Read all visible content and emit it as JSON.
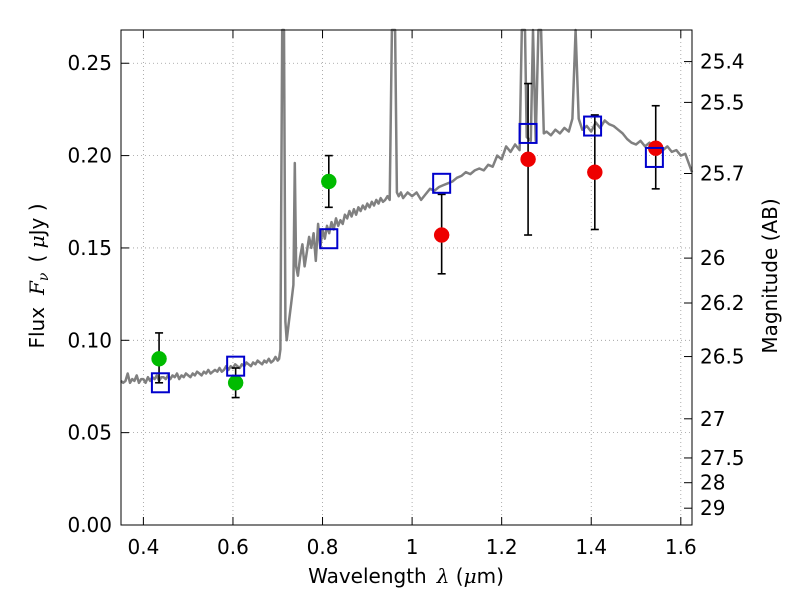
{
  "chart_data": {
    "type": "scatter",
    "xlabel": {
      "main": "Wavelength",
      "symbol": "λ",
      "unit_open": " (",
      "unit_mu": "μ",
      "unit_rest": "m)"
    },
    "ylabel": {
      "main": "Flux",
      "symbol": "F",
      "subscript": "ν",
      "unit_open": "( ",
      "unit_mu": "μ",
      "unit_rest": "Jy )"
    },
    "ylabel_right": "Magnitude (AB)",
    "xlim": [
      0.35,
      1.625
    ],
    "ylim": [
      0.0,
      0.268
    ],
    "x_ticks": [
      0.4,
      0.6,
      0.8,
      1.0,
      1.2,
      1.4,
      1.6
    ],
    "x_tick_labels": [
      "0.4",
      "0.6",
      "0.8",
      "1",
      "1.2",
      "1.4",
      "1.6"
    ],
    "y_ticks": [
      0.0,
      0.05,
      0.1,
      0.15,
      0.2,
      0.25
    ],
    "y_tick_labels": [
      "0.00",
      "0.05",
      "0.10",
      "0.15",
      "0.20",
      "0.25"
    ],
    "magnitude_ticks": [
      {
        "label": "25.4",
        "flux": 0.2509
      },
      {
        "label": "25.5",
        "flux": 0.2288
      },
      {
        "label": "25.7",
        "flux": 0.1903
      },
      {
        "label": "26",
        "flux": 0.1445
      },
      {
        "label": "26.2",
        "flux": 0.1202
      },
      {
        "label": "26.5",
        "flux": 0.0912
      },
      {
        "label": "27",
        "flux": 0.0575
      },
      {
        "label": "27.5",
        "flux": 0.0363
      },
      {
        "label": "28",
        "flux": 0.0229
      },
      {
        "label": "29",
        "flux": 0.0091
      }
    ],
    "grid": true,
    "colors": {
      "model": "#808080",
      "green_points": "#00bb00",
      "red_points": "#ee0000",
      "model_boxes": "#0000cc",
      "errorbar": "#000000",
      "grid": "#999999"
    },
    "series": [
      {
        "kind": "line",
        "points": [
          [
            0.35,
            0.078
          ],
          [
            0.355,
            0.077
          ],
          [
            0.36,
            0.078
          ],
          [
            0.365,
            0.082
          ],
          [
            0.37,
            0.077
          ],
          [
            0.375,
            0.079
          ],
          [
            0.38,
            0.078
          ],
          [
            0.385,
            0.081
          ],
          [
            0.39,
            0.077
          ],
          [
            0.395,
            0.079
          ],
          [
            0.4,
            0.079
          ],
          [
            0.405,
            0.077
          ],
          [
            0.41,
            0.08
          ],
          [
            0.415,
            0.078
          ],
          [
            0.42,
            0.08
          ],
          [
            0.425,
            0.079
          ],
          [
            0.43,
            0.081
          ],
          [
            0.435,
            0.078
          ],
          [
            0.44,
            0.08
          ],
          [
            0.445,
            0.08
          ],
          [
            0.45,
            0.079
          ],
          [
            0.455,
            0.081
          ],
          [
            0.46,
            0.079
          ],
          [
            0.465,
            0.081
          ],
          [
            0.47,
            0.08
          ],
          [
            0.475,
            0.082
          ],
          [
            0.48,
            0.079
          ],
          [
            0.485,
            0.081
          ],
          [
            0.49,
            0.08
          ],
          [
            0.495,
            0.082
          ],
          [
            0.5,
            0.081
          ],
          [
            0.505,
            0.08
          ],
          [
            0.51,
            0.082
          ],
          [
            0.515,
            0.081
          ],
          [
            0.52,
            0.083
          ],
          [
            0.525,
            0.082
          ],
          [
            0.53,
            0.081
          ],
          [
            0.535,
            0.083
          ],
          [
            0.54,
            0.082
          ],
          [
            0.545,
            0.084
          ],
          [
            0.55,
            0.082
          ],
          [
            0.555,
            0.083
          ],
          [
            0.56,
            0.084
          ],
          [
            0.565,
            0.083
          ],
          [
            0.57,
            0.085
          ],
          [
            0.575,
            0.083
          ],
          [
            0.58,
            0.084
          ],
          [
            0.585,
            0.086
          ],
          [
            0.59,
            0.084
          ],
          [
            0.595,
            0.086
          ],
          [
            0.6,
            0.085
          ],
          [
            0.605,
            0.087
          ],
          [
            0.61,
            0.086
          ],
          [
            0.615,
            0.085
          ],
          [
            0.62,
            0.087
          ],
          [
            0.625,
            0.086
          ],
          [
            0.63,
            0.088
          ],
          [
            0.635,
            0.087
          ],
          [
            0.64,
            0.086
          ],
          [
            0.645,
            0.088
          ],
          [
            0.65,
            0.087
          ],
          [
            0.655,
            0.089
          ],
          [
            0.66,
            0.088
          ],
          [
            0.665,
            0.087
          ],
          [
            0.67,
            0.089
          ],
          [
            0.675,
            0.088
          ],
          [
            0.68,
            0.09
          ],
          [
            0.685,
            0.088
          ],
          [
            0.69,
            0.089
          ],
          [
            0.695,
            0.091
          ],
          [
            0.7,
            0.089
          ],
          [
            0.703,
            0.09
          ],
          [
            0.706,
            0.095
          ],
          [
            0.71,
            0.27
          ],
          [
            0.714,
            0.27
          ],
          [
            0.717,
            0.11
          ],
          [
            0.72,
            0.1
          ],
          [
            0.725,
            0.11
          ],
          [
            0.73,
            0.12
          ],
          [
            0.735,
            0.13
          ],
          [
            0.738,
            0.196
          ],
          [
            0.741,
            0.14
          ],
          [
            0.745,
            0.135
          ],
          [
            0.75,
            0.145
          ],
          [
            0.755,
            0.152
          ],
          [
            0.76,
            0.14
          ],
          [
            0.765,
            0.148
          ],
          [
            0.77,
            0.156
          ],
          [
            0.775,
            0.15
          ],
          [
            0.78,
            0.158
          ],
          [
            0.785,
            0.143
          ],
          [
            0.79,
            0.163
          ],
          [
            0.795,
            0.15
          ],
          [
            0.8,
            0.16
          ],
          [
            0.805,
            0.155
          ],
          [
            0.81,
            0.162
          ],
          [
            0.815,
            0.158
          ],
          [
            0.82,
            0.164
          ],
          [
            0.825,
            0.16
          ],
          [
            0.83,
            0.166
          ],
          [
            0.835,
            0.162
          ],
          [
            0.84,
            0.165
          ],
          [
            0.845,
            0.163
          ],
          [
            0.85,
            0.168
          ],
          [
            0.855,
            0.166
          ],
          [
            0.86,
            0.17
          ],
          [
            0.865,
            0.167
          ],
          [
            0.87,
            0.171
          ],
          [
            0.875,
            0.168
          ],
          [
            0.88,
            0.172
          ],
          [
            0.885,
            0.17
          ],
          [
            0.89,
            0.173
          ],
          [
            0.895,
            0.171
          ],
          [
            0.9,
            0.174
          ],
          [
            0.905,
            0.172
          ],
          [
            0.91,
            0.175
          ],
          [
            0.915,
            0.173
          ],
          [
            0.92,
            0.176
          ],
          [
            0.925,
            0.174
          ],
          [
            0.93,
            0.177
          ],
          [
            0.935,
            0.175
          ],
          [
            0.94,
            0.176
          ],
          [
            0.945,
            0.178
          ],
          [
            0.95,
            0.176
          ],
          [
            0.955,
            0.27
          ],
          [
            0.962,
            0.27
          ],
          [
            0.966,
            0.18
          ],
          [
            0.97,
            0.178
          ],
          [
            0.975,
            0.18
          ],
          [
            0.98,
            0.177
          ],
          [
            0.99,
            0.18
          ],
          [
            1.0,
            0.178
          ],
          [
            1.01,
            0.18
          ],
          [
            1.02,
            0.176
          ],
          [
            1.03,
            0.179
          ],
          [
            1.04,
            0.182
          ],
          [
            1.05,
            0.181
          ],
          [
            1.06,
            0.183
          ],
          [
            1.07,
            0.184
          ],
          [
            1.08,
            0.185
          ],
          [
            1.09,
            0.186
          ],
          [
            1.1,
            0.188
          ],
          [
            1.11,
            0.189
          ],
          [
            1.12,
            0.191
          ],
          [
            1.13,
            0.19
          ],
          [
            1.14,
            0.192
          ],
          [
            1.15,
            0.193
          ],
          [
            1.16,
            0.192
          ],
          [
            1.17,
            0.195
          ],
          [
            1.18,
            0.194
          ],
          [
            1.19,
            0.2
          ],
          [
            1.2,
            0.198
          ],
          [
            1.21,
            0.205
          ],
          [
            1.22,
            0.202
          ],
          [
            1.23,
            0.206
          ],
          [
            1.24,
            0.203
          ],
          [
            1.245,
            0.27
          ],
          [
            1.252,
            0.27
          ],
          [
            1.256,
            0.21
          ],
          [
            1.265,
            0.208
          ],
          [
            1.27,
            0.27
          ],
          [
            1.276,
            0.208
          ],
          [
            1.282,
            0.27
          ],
          [
            1.288,
            0.27
          ],
          [
            1.294,
            0.212
          ],
          [
            1.3,
            0.213
          ],
          [
            1.31,
            0.211
          ],
          [
            1.32,
            0.214
          ],
          [
            1.33,
            0.212
          ],
          [
            1.34,
            0.215
          ],
          [
            1.35,
            0.213
          ],
          [
            1.358,
            0.22
          ],
          [
            1.365,
            0.27
          ],
          [
            1.372,
            0.22
          ],
          [
            1.38,
            0.214
          ],
          [
            1.39,
            0.216
          ],
          [
            1.4,
            0.213
          ],
          [
            1.41,
            0.218
          ],
          [
            1.42,
            0.215
          ],
          [
            1.43,
            0.219
          ],
          [
            1.44,
            0.217
          ],
          [
            1.45,
            0.216
          ],
          [
            1.46,
            0.214
          ],
          [
            1.47,
            0.212
          ],
          [
            1.48,
            0.209
          ],
          [
            1.49,
            0.207
          ],
          [
            1.5,
            0.206
          ],
          [
            1.51,
            0.208
          ],
          [
            1.52,
            0.205
          ],
          [
            1.53,
            0.207
          ],
          [
            1.54,
            0.204
          ],
          [
            1.55,
            0.206
          ],
          [
            1.56,
            0.203
          ],
          [
            1.57,
            0.205
          ],
          [
            1.58,
            0.202
          ],
          [
            1.59,
            0.203
          ],
          [
            1.6,
            0.2
          ],
          [
            1.61,
            0.201
          ],
          [
            1.625,
            0.191
          ]
        ]
      },
      {
        "kind": "points",
        "marker": "circle",
        "points": [
          {
            "x": 0.435,
            "y": 0.09,
            "err_lo": 0.077,
            "err_hi": 0.104
          },
          {
            "x": 0.606,
            "y": 0.077,
            "err_lo": 0.069,
            "err_hi": 0.085
          },
          {
            "x": 0.814,
            "y": 0.186,
            "err_lo": 0.172,
            "err_hi": 0.2
          }
        ]
      },
      {
        "kind": "points",
        "marker": "circle",
        "points": [
          {
            "x": 1.066,
            "y": 0.157,
            "err_lo": 0.136,
            "err_hi": 0.179
          },
          {
            "x": 1.259,
            "y": 0.198,
            "err_lo": 0.157,
            "err_hi": 0.239
          },
          {
            "x": 1.408,
            "y": 0.191,
            "err_lo": 0.16,
            "err_hi": 0.222
          },
          {
            "x": 1.544,
            "y": 0.204,
            "err_lo": 0.182,
            "err_hi": 0.227
          }
        ]
      },
      {
        "kind": "points",
        "marker": "square",
        "points": [
          {
            "x": 0.438,
            "y": 0.077
          },
          {
            "x": 0.606,
            "y": 0.086
          },
          {
            "x": 0.814,
            "y": 0.155
          },
          {
            "x": 1.066,
            "y": 0.185
          },
          {
            "x": 1.259,
            "y": 0.212
          },
          {
            "x": 1.403,
            "y": 0.216
          },
          {
            "x": 1.541,
            "y": 0.199
          }
        ]
      }
    ]
  }
}
